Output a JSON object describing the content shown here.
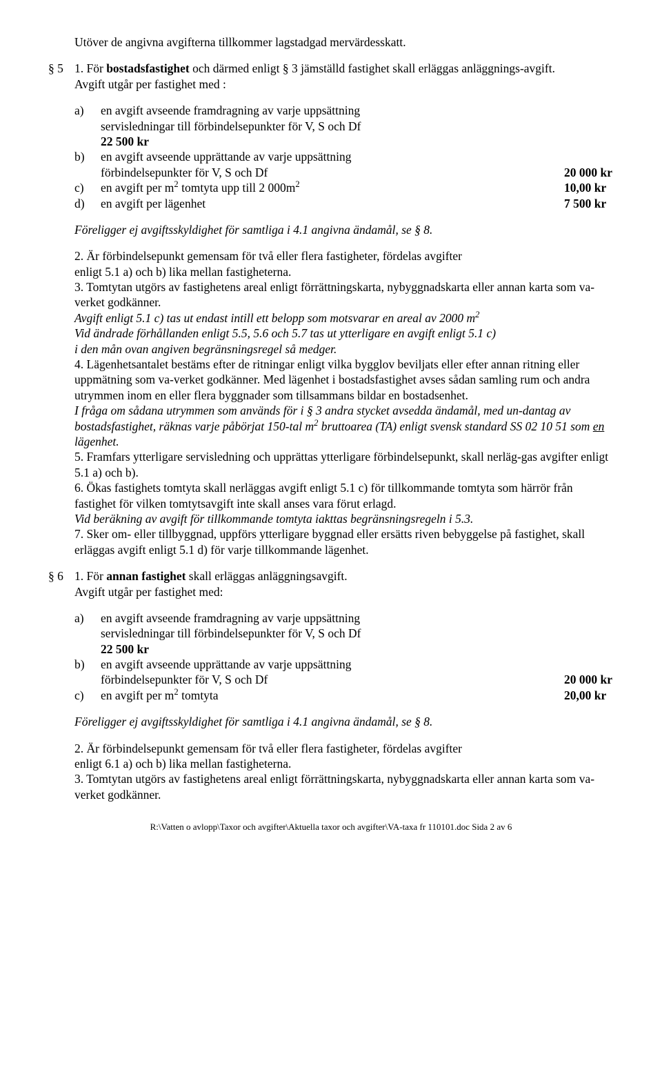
{
  "intro_line": "Utöver de angivna avgifterna tillkommer lagstadgad mervärdesskatt.",
  "s5": {
    "label": "§ 5",
    "p1_num": "1.",
    "p1_a": "För ",
    "p1_b": "bostadsfastighet",
    "p1_c": " och därmed enligt § 3 jämställd fastighet skall erläggas anläggnings-avgift.",
    "p2": "Avgift utgår per fastighet med :",
    "items": {
      "a": {
        "letter": "a)",
        "line1": "en avgift avseende framdragning av varje uppsättning",
        "line2": "servisledningar till förbindelsepunkter för V, S och Df",
        "line3": "22 500 kr"
      },
      "b": {
        "letter": "b)",
        "line1": "en avgift avseende upprättande av varje uppsättning",
        "line2": "förbindelsepunkter för V, S och Df",
        "amount": "20 000 kr"
      },
      "c": {
        "letter": "c)",
        "text_a": "en avgift per m",
        "sup1": "2",
        "text_b": " tomtyta upp till 2 000m",
        "sup2": "2",
        "amount": "10,00 kr"
      },
      "d": {
        "letter": "d)",
        "text": "en avgift per lägenhet",
        "amount": "7 500 kr"
      }
    },
    "italic1": "Föreligger ej avgiftsskyldighet för samtliga i 4.1 angivna ändamål, se § 8.",
    "p3a": "2. Är förbindelsepunkt gemensam för två eller flera fastigheter, fördelas avgifter",
    "p3b": "enligt 5.1 a) och b) lika mellan fastigheterna.",
    "p4": " 3. Tomtytan utgörs av fastighetens areal enligt förrättningskarta, nybyggnadskarta eller annan karta som va-verket godkänner.",
    "it5a": "Avgift enligt 5.1 c) tas ut endast intill ett belopp som motsvarar en areal av 2000 m",
    "it5a_sup": "2",
    "it5b": " Vid ändrade förhållanden enligt 5.5, 5.6 och 5.7 tas ut ytterligare en avgift enligt 5.1 c)",
    "it5c": " i den mån ovan angiven begränsningsregel så medger.",
    "p6a": "4. Lägenhetsantalet bestäms efter de ritningar enligt vilka bygglov beviljats eller efter annan ritning eller uppmätning som va-verket godkänner. Med lägenhet i bostadsfastighet avses sådan samling rum och andra utrymmen inom en eller flera byggnader som tillsammans bildar en bostadsenhet.",
    "it7a": "I fråga om sådana utrymmen som används för i § 3 andra stycket avsedda ändamål, med un-dantag av bostadsfastighet, räknas varje påbörjat 150-tal m",
    "it7_sup": "2",
    "it7b": "  bruttoarea (TA) enligt svensk standard SS 02 10 51 som ",
    "it7_u": "en",
    "it7c": " lägenhet.",
    "p8": "5. Framfars ytterligare servisledning och upprättas ytterligare förbindelsepunkt, skall nerläg-gas avgifter enligt 5.1 a) och b).",
    "p9": "6. Ökas fastighets tomtyta skall nerläggas avgift enligt 5.1 c) för tillkommande tomtyta som härrör från fastighet för vilken tomtytsavgift inte skall anses vara förut erlagd.",
    "it10": "Vid beräkning av avgift för tillkommande tomtyta iakttas begränsningsregeln i 5.3.",
    "p11": "7. Sker om- eller tillbyggnad, uppförs ytterligare byggnad eller ersätts riven bebyggelse på fastighet, skall erläggas avgift enligt 5.1 d) för varje tillkommande lägenhet."
  },
  "s6": {
    "label": "§ 6",
    "p1_a": "1. För ",
    "p1_b": "annan fastighet",
    "p1_c": " skall erläggas anläggningsavgift.",
    "p2": "Avgift utgår per fastighet med:",
    "items": {
      "a": {
        "letter": "a)",
        "line1": "en avgift avseende framdragning av varje uppsättning",
        "line2": "servisledningar till förbindelsepunkter för V, S och Df",
        "line3": "22 500 kr"
      },
      "b": {
        "letter": "b)",
        "line1": "en avgift avseende upprättande av varje uppsättning",
        "line2": "förbindelsepunkter för V, S och Df",
        "amount": "20 000 kr"
      },
      "c": {
        "letter": "c)",
        "text_a": "en avgift per m",
        "sup1": "2",
        "text_b": "  tomtyta",
        "amount": "20,00 kr"
      }
    },
    "italic1": "Föreligger ej avgiftsskyldighet för samtliga i 4.1 angivna ändamål, se § 8.",
    "p3a": "2. Är förbindelsepunkt gemensam för två eller flera fastigheter, fördelas avgifter",
    "p3b": "enligt 6.1 a) och b) lika mellan fastigheterna.",
    "p4": "3. Tomtytan utgörs av fastighetens areal enligt förrättningskarta, nybyggnadskarta eller annan karta som va-verket godkänner."
  },
  "footer": "R:\\Vatten o avlopp\\Taxor och avgifter\\Aktuella taxor och avgifter\\VA-taxa fr 110101.doc  Sida 2 av 6"
}
